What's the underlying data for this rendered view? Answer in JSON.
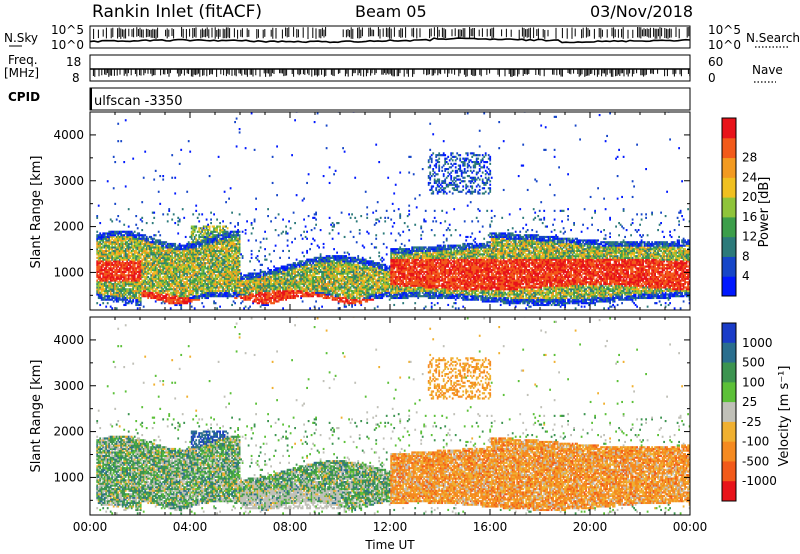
{
  "header": {
    "title": "Rankin Inlet (fitACF)",
    "beam": "Beam 05",
    "date": "03/Nov/2018"
  },
  "status": {
    "nsky_label": "N.Sky",
    "nsearch_label": "N.Search",
    "freq_label": "Freq.",
    "freq_unit": "[MHz]",
    "nave_label": "Nave",
    "cpid_label": "CPID",
    "cpid_value": "ulfscan -3350",
    "noise_ticks": [
      "10^5",
      "10^0"
    ],
    "freq_ticks": [
      "18",
      "8"
    ],
    "nave_ticks": [
      "60",
      "0"
    ]
  },
  "chart_data": [
    {
      "type": "heatmap",
      "panel": "power",
      "ylabel": "Slant Range [km]",
      "ylim": [
        180,
        4500
      ],
      "yticks": [
        "1000",
        "2000",
        "3000",
        "4000"
      ],
      "colorbar": {
        "label": "Power [dB]",
        "ticks": [
          "4",
          "8",
          "12",
          "16",
          "20",
          "24",
          "28"
        ],
        "colors": [
          "#0018ff",
          "#1646c8",
          "#2c7a7a",
          "#3c9e4a",
          "#8fc43a",
          "#f0c020",
          "#f39a20",
          "#f25a1a",
          "#e8131a"
        ]
      },
      "regions": [
        {
          "t0": 0.2,
          "t1": 12.5,
          "r0": 700,
          "r1": 1800,
          "level": "mixed"
        },
        {
          "t0": 12.5,
          "t1": 24.0,
          "r0": 600,
          "r1": 1800,
          "level": "strong"
        },
        {
          "t0": 13.5,
          "t1": 16.0,
          "r0": 2700,
          "r1": 3600,
          "level": "weak"
        },
        {
          "t0": 4.0,
          "t1": 5.5,
          "r0": 1200,
          "r1": 2000,
          "level": "mixed"
        }
      ]
    },
    {
      "type": "heatmap",
      "panel": "velocity",
      "ylabel": "Slant Range [km]",
      "xlabel": "Time UT",
      "ylim": [
        180,
        4500
      ],
      "yticks": [
        "1000",
        "2000",
        "3000",
        "4000"
      ],
      "xticks": [
        "00:00",
        "04:00",
        "08:00",
        "12:00",
        "16:00",
        "20:00",
        "00:00"
      ],
      "xlim": [
        0,
        24
      ],
      "colorbar": {
        "label": "Velocity [m s⁻¹]",
        "ticks": [
          "1000",
          "500",
          "100",
          "25",
          "-25",
          "-100",
          "-500",
          "-1000"
        ],
        "colors": [
          "#1a3cc8",
          "#2a6e8e",
          "#3c9450",
          "#5cc038",
          "#c0c0b8",
          "#f0b030",
          "#f58a20",
          "#f25a1a",
          "#e8131a"
        ]
      }
    }
  ]
}
